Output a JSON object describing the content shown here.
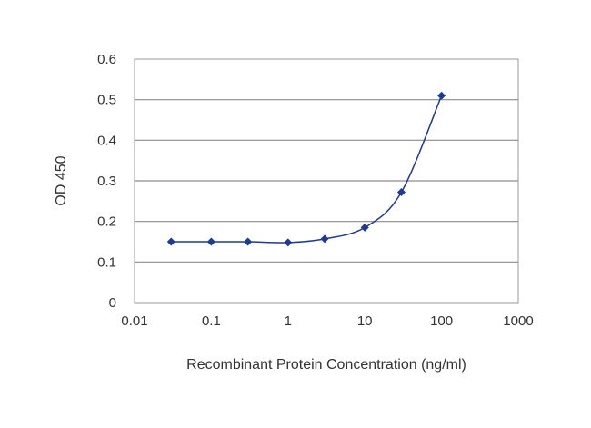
{
  "chart_data": {
    "type": "line",
    "title": "",
    "xlabel": "Recombinant Protein Concentration (ng/ml)",
    "ylabel": "OD 450",
    "x_scale": "log",
    "xlim": [
      0.01,
      1000
    ],
    "ylim": [
      0,
      0.6
    ],
    "x_ticks": [
      "0.01",
      "0.1",
      "1",
      "10",
      "100",
      "1000"
    ],
    "y_ticks": [
      "0",
      "0.1",
      "0.2",
      "0.3",
      "0.4",
      "0.5",
      "0.6"
    ],
    "grid": "horizontal",
    "legend": "none",
    "series": [
      {
        "x": [
          0.03,
          0.1,
          0.3,
          1,
          3,
          10,
          30,
          100
        ],
        "y": [
          0.15,
          0.15,
          0.15,
          0.148,
          0.157,
          0.185,
          0.272,
          0.51
        ],
        "color": "#1f3a93",
        "smooth": true,
        "marker": "diamond"
      }
    ]
  }
}
